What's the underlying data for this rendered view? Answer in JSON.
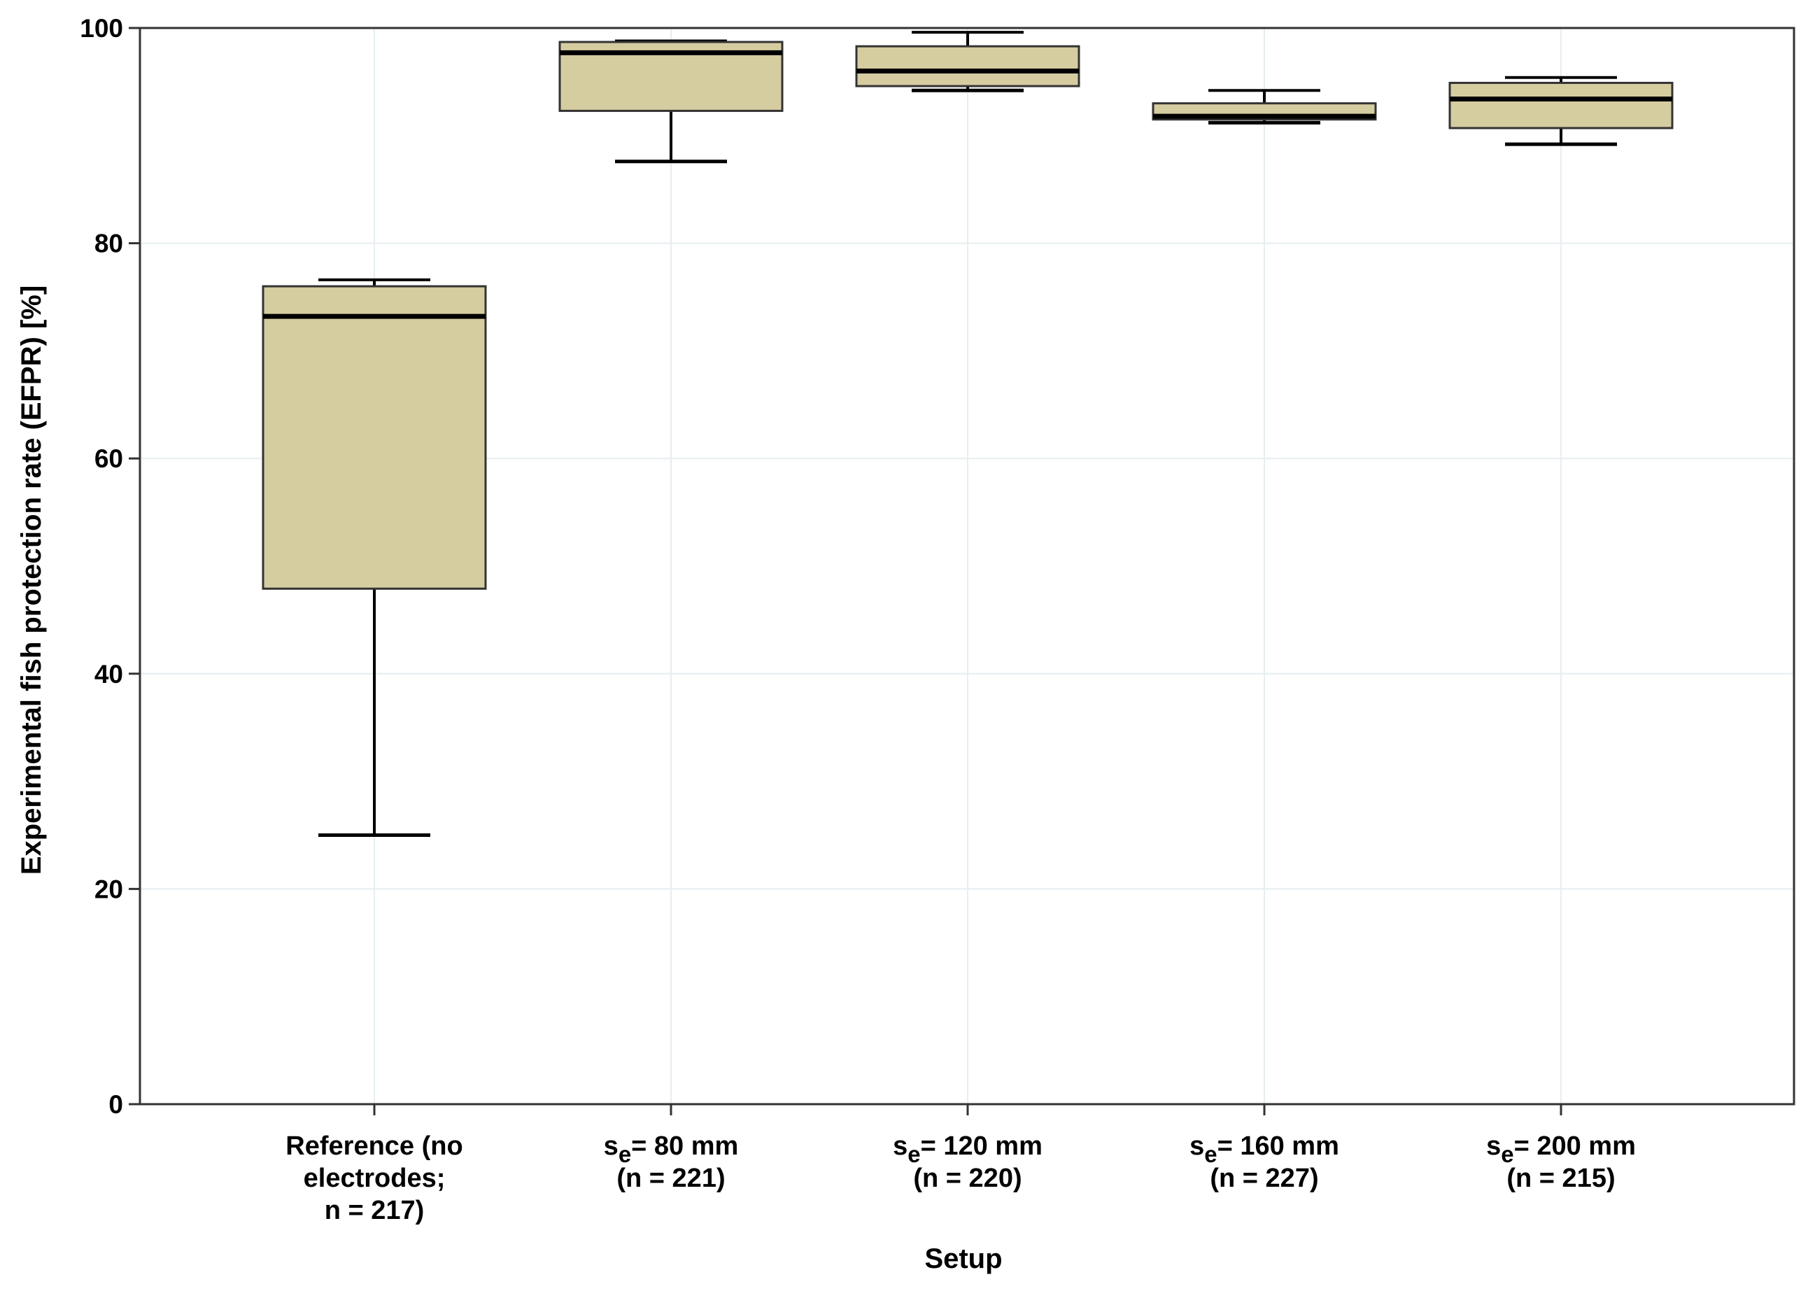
{
  "chart_data": {
    "type": "box",
    "title": "",
    "xlabel": "Setup",
    "ylabel": "Experimental fish protection rate (EFPR) [%]",
    "ylim": [
      0,
      100
    ],
    "yticks": [
      0,
      20,
      40,
      60,
      80,
      100
    ],
    "ytick_labels": [
      "0",
      "20",
      "40",
      "60",
      "80",
      "100"
    ],
    "grid": true,
    "colors": {
      "box_fill": "#d5cca0",
      "box_stroke": "#333333",
      "gridline": "#e6eef0",
      "axis": "#333333"
    },
    "categories": [
      {
        "label_lines": [
          {
            "main": "Reference (no",
            "sub": "",
            "rest": ""
          },
          {
            "main": "electrodes;",
            "sub": "",
            "rest": ""
          },
          {
            "main": "n = 217)",
            "sub": "",
            "rest": ""
          }
        ],
        "min": 25.0,
        "q1": 47.9,
        "median": 73.2,
        "q3": 76.0,
        "max": 76.6
      },
      {
        "label_lines": [
          {
            "main": "s",
            "sub": "e",
            "rest": "= 80 mm"
          },
          {
            "main": "(n = 221)",
            "sub": "",
            "rest": ""
          }
        ],
        "min": 87.6,
        "q1": 92.3,
        "median": 97.7,
        "q3": 98.7,
        "max": 98.8
      },
      {
        "label_lines": [
          {
            "main": "s",
            "sub": "e",
            "rest": "= 120 mm"
          },
          {
            "main": "(n = 220)",
            "sub": "",
            "rest": ""
          }
        ],
        "min": 94.2,
        "q1": 94.6,
        "median": 96.0,
        "q3": 98.3,
        "max": 99.6
      },
      {
        "label_lines": [
          {
            "main": "s",
            "sub": "e",
            "rest": "= 160 mm"
          },
          {
            "main": "(n = 227)",
            "sub": "",
            "rest": ""
          }
        ],
        "min": 91.2,
        "q1": 91.5,
        "median": 91.8,
        "q3": 93.0,
        "max": 94.2
      },
      {
        "label_lines": [
          {
            "main": "s",
            "sub": "e",
            "rest": "= 200 mm"
          },
          {
            "main": "(n = 215)",
            "sub": "",
            "rest": ""
          }
        ],
        "min": 89.2,
        "q1": 90.7,
        "median": 93.4,
        "q3": 94.9,
        "max": 95.4
      }
    ]
  }
}
